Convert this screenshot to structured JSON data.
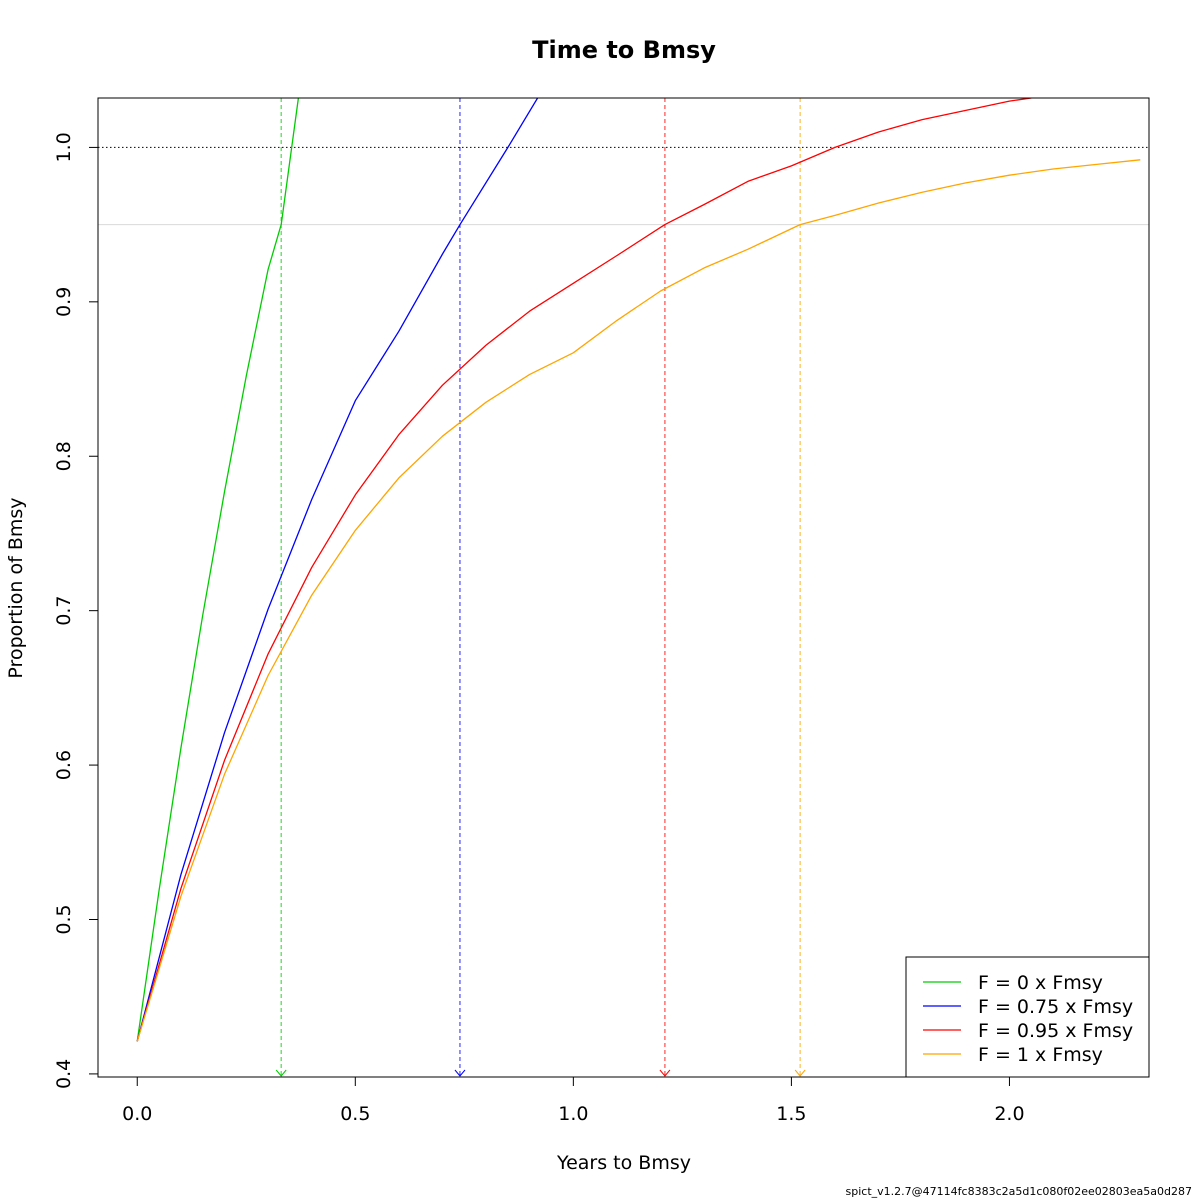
{
  "chart_data": {
    "type": "line",
    "title": "Time to Bmsy",
    "xlabel": "Years to Bmsy",
    "ylabel": "Proportion of Bmsy",
    "xlim": [
      -0.09,
      2.32
    ],
    "ylim": [
      0.398,
      1.032
    ],
    "xticks": [
      0.0,
      0.5,
      1.0,
      1.5,
      2.0
    ],
    "xtick_labels": [
      "0.0",
      "0.5",
      "1.0",
      "1.5",
      "2.0"
    ],
    "yticks": [
      0.4,
      0.5,
      0.6,
      0.7,
      0.8,
      0.9,
      1.0
    ],
    "ytick_labels": [
      "0.4",
      "0.5",
      "0.6",
      "0.7",
      "0.8",
      "0.9",
      "1.0"
    ],
    "reference_lines": [
      {
        "axis": "y",
        "value": 1.0,
        "style": "dotted",
        "color": "#000000"
      },
      {
        "axis": "y",
        "value": 0.95,
        "style": "solid",
        "color": "#d9d9d9"
      }
    ],
    "series": [
      {
        "name": "F = 0 x Fmsy",
        "color": "#00cd00",
        "time_to_95pct": 0.33,
        "x": [
          0.0,
          0.05,
          0.1,
          0.15,
          0.2,
          0.25,
          0.3,
          0.33,
          0.37
        ],
        "y": [
          0.421,
          0.519,
          0.611,
          0.697,
          0.777,
          0.852,
          0.921,
          0.95,
          1.033
        ]
      },
      {
        "name": "F = 0.75 x Fmsy",
        "color": "#0000ff",
        "time_to_95pct": 0.74,
        "x": [
          0.0,
          0.1,
          0.2,
          0.3,
          0.4,
          0.5,
          0.6,
          0.7,
          0.74,
          0.85,
          0.92
        ],
        "y": [
          0.421,
          0.529,
          0.621,
          0.701,
          0.772,
          0.836,
          0.881,
          0.931,
          0.95,
          1.0,
          1.033
        ]
      },
      {
        "name": "F = 0.95 x Fmsy",
        "color": "#ff0000",
        "time_to_95pct": 1.21,
        "x": [
          0.0,
          0.1,
          0.2,
          0.3,
          0.4,
          0.5,
          0.6,
          0.7,
          0.8,
          0.9,
          1.0,
          1.1,
          1.21,
          1.3,
          1.4,
          1.5,
          1.6,
          1.7,
          1.8,
          1.9,
          2.0,
          2.05
        ],
        "y": [
          0.421,
          0.52,
          0.603,
          0.672,
          0.728,
          0.775,
          0.814,
          0.846,
          0.872,
          0.894,
          0.912,
          0.93,
          0.95,
          0.963,
          0.978,
          0.988,
          1.0,
          1.01,
          1.018,
          1.024,
          1.03,
          1.032
        ]
      },
      {
        "name": "F = 1 x Fmsy",
        "color": "#ffa500",
        "time_to_95pct": 1.52,
        "x": [
          0.0,
          0.1,
          0.2,
          0.3,
          0.4,
          0.5,
          0.6,
          0.7,
          0.8,
          0.9,
          1.0,
          1.1,
          1.2,
          1.3,
          1.4,
          1.52,
          1.6,
          1.7,
          1.8,
          1.9,
          2.0,
          2.1,
          2.2,
          2.3
        ],
        "y": [
          0.421,
          0.515,
          0.594,
          0.658,
          0.71,
          0.752,
          0.786,
          0.813,
          0.835,
          0.853,
          0.867,
          0.888,
          0.907,
          0.922,
          0.934,
          0.95,
          0.956,
          0.964,
          0.971,
          0.977,
          0.982,
          0.986,
          0.989,
          0.992
        ]
      }
    ],
    "legend": {
      "position": "bottom-right",
      "entries": [
        "F = 0 x Fmsy",
        "F = 0.75 x Fmsy",
        "F = 0.95 x Fmsy",
        "F = 1 x Fmsy"
      ]
    },
    "grid": false
  },
  "footer_note": "spict_v1.2.7@47114fc8383c2a5d1c080f02ee02803ea5a0d287"
}
